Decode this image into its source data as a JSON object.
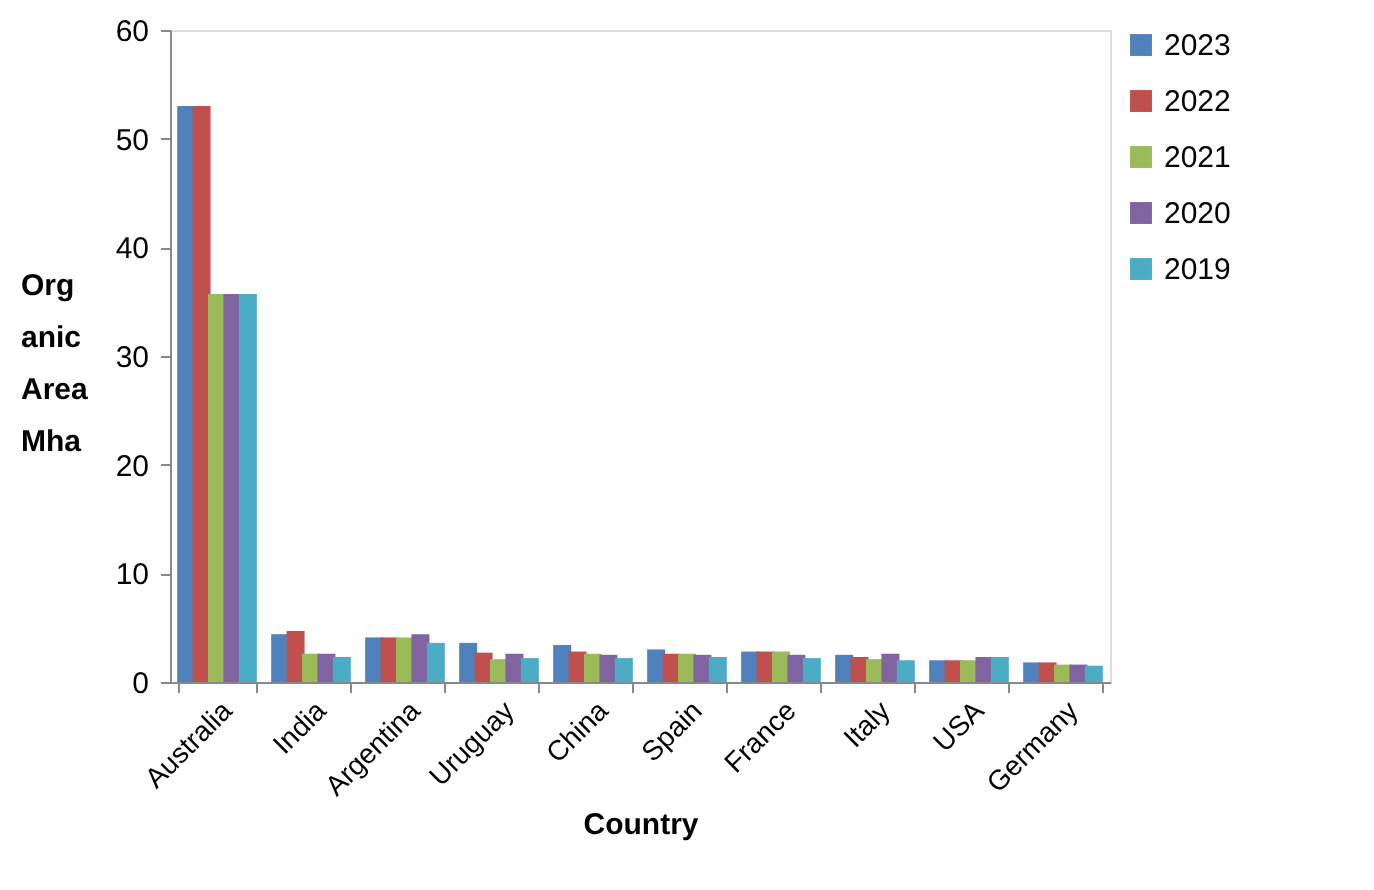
{
  "chart_data": {
    "type": "bar",
    "xlabel": "Country",
    "ylabel": "Org\nanic\nArea\nMha",
    "categories": [
      "Australia",
      "India",
      "Argentina",
      "Uruguay",
      "China",
      "Spain",
      "France",
      "Italy",
      "USA",
      "Germany"
    ],
    "series": [
      {
        "name": "2023",
        "color": "#4f81bd",
        "values": [
          53,
          4.4,
          4.1,
          3.6,
          3.4,
          3.0,
          2.8,
          2.5,
          2.0,
          1.8
        ]
      },
      {
        "name": "2022",
        "color": "#c0504d",
        "values": [
          53,
          4.7,
          4.1,
          2.7,
          2.8,
          2.6,
          2.8,
          2.3,
          2.0,
          1.8
        ]
      },
      {
        "name": "2021",
        "color": "#9bbb59",
        "values": [
          35.7,
          2.6,
          4.1,
          2.1,
          2.6,
          2.6,
          2.8,
          2.1,
          2.0,
          1.6
        ]
      },
      {
        "name": "2020",
        "color": "#8064a2",
        "values": [
          35.7,
          2.6,
          4.4,
          2.6,
          2.5,
          2.5,
          2.5,
          2.6,
          2.3,
          1.6
        ]
      },
      {
        "name": "2019",
        "color": "#4bacc6",
        "values": [
          35.7,
          2.3,
          3.6,
          2.2,
          2.2,
          2.3,
          2.2,
          2.0,
          2.3,
          1.5
        ]
      }
    ],
    "ylim": [
      0,
      60
    ],
    "yticks": [
      0,
      10,
      20,
      30,
      40,
      50,
      60
    ],
    "grid": false,
    "legend": "right"
  }
}
